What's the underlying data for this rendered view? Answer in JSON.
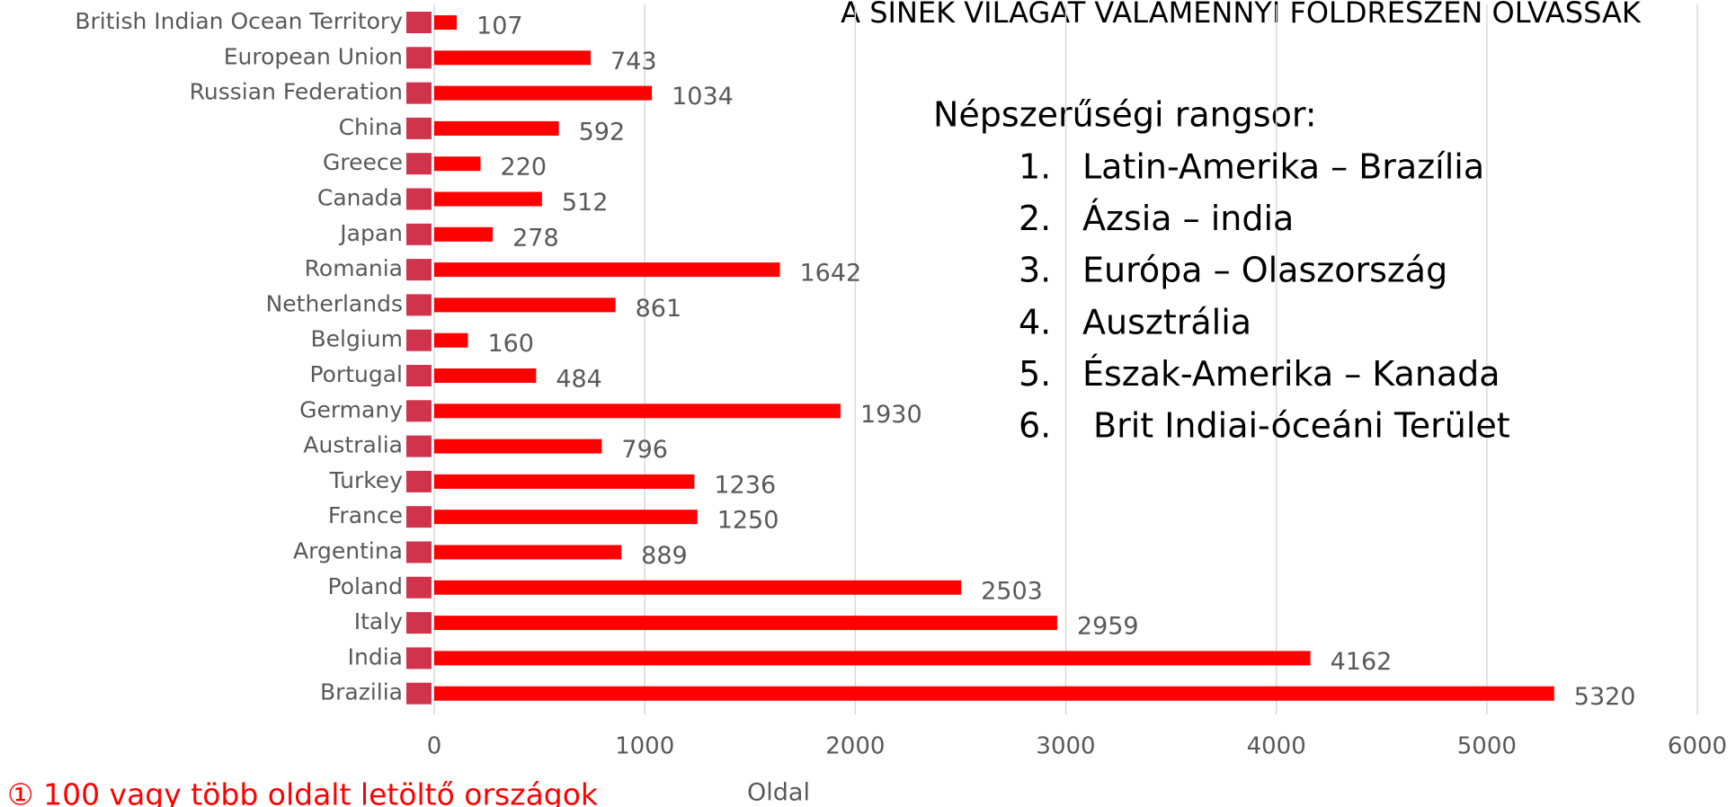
{
  "chart_data": {
    "type": "bar",
    "orientation": "horizontal",
    "title": "A SINEK VILÁGÁT VALAMENNYI FÖLDRÉSZEN OLVASSÁK",
    "x_label": "Oldal",
    "categories": [
      "British Indian Ocean Territory",
      "European Union",
      "Russian Federation",
      "China",
      "Greece",
      "Canada",
      "Japan",
      "Romania",
      "Netherlands",
      "Belgium",
      "Portugal",
      "Germany",
      "Australia",
      "Turkey",
      "France",
      "Argentina",
      "Poland",
      "Italy",
      "India",
      "Brazilia"
    ],
    "values": [
      107,
      743,
      1034,
      592,
      220,
      512,
      278,
      1642,
      861,
      160,
      484,
      1930,
      796,
      1236,
      1250,
      889,
      2503,
      2959,
      4162,
      5320
    ],
    "color": "#ff0000",
    "xlim": [
      0,
      6000
    ],
    "xticks": [
      0,
      1000,
      2000,
      3000,
      4000,
      5000,
      6000
    ],
    "grid": true,
    "ranking": {
      "title": "Népszerűségi rangsor:",
      "items": [
        {
          "number": "1.",
          "text": "Latin-Amerika – Brazília"
        },
        {
          "number": "2.",
          "text": "Ázsia – india"
        },
        {
          "number": "3.",
          "text": "Európa – Olaszország"
        },
        {
          "number": "4.",
          "text": "Ausztrália"
        },
        {
          "number": "5.",
          "text": "Észak-Amerika – Kanada"
        },
        {
          "number": "6.",
          "text": "Brit Indiai-óceáni Terület"
        }
      ]
    },
    "footnote": "① 100 vagy több oldalt letöltő országok"
  }
}
